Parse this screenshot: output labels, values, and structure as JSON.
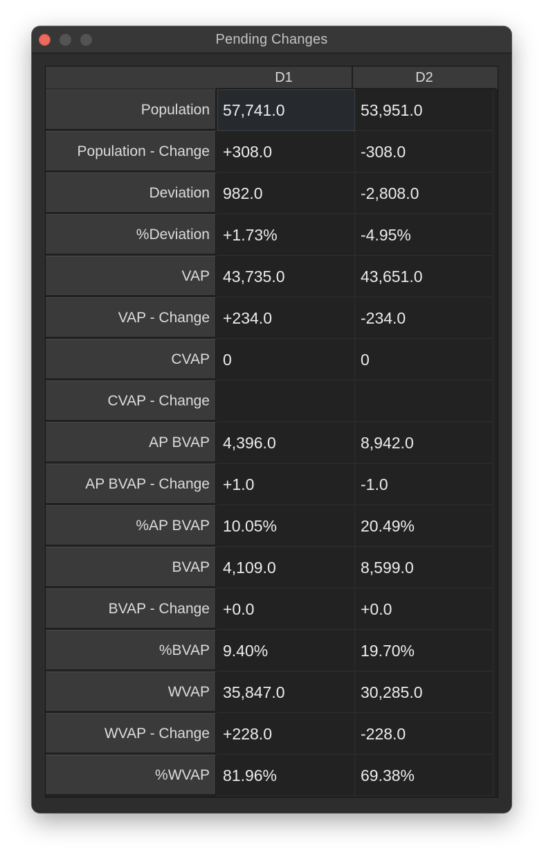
{
  "window": {
    "title": "Pending Changes"
  },
  "table": {
    "columns": [
      "D1",
      "D2"
    ],
    "rows": [
      {
        "label": "Population",
        "d1": "57,741.0",
        "d2": "53,951.0"
      },
      {
        "label": "Population - Change",
        "d1": "+308.0",
        "d2": "-308.0"
      },
      {
        "label": "Deviation",
        "d1": "982.0",
        "d2": "-2,808.0"
      },
      {
        "label": "%Deviation",
        "d1": "+1.73%",
        "d2": "-4.95%"
      },
      {
        "label": "VAP",
        "d1": "43,735.0",
        "d2": "43,651.0"
      },
      {
        "label": "VAP - Change",
        "d1": "+234.0",
        "d2": "-234.0"
      },
      {
        "label": "CVAP",
        "d1": "0",
        "d2": "0"
      },
      {
        "label": "CVAP - Change",
        "d1": "",
        "d2": ""
      },
      {
        "label": "AP BVAP",
        "d1": "4,396.0",
        "d2": "8,942.0"
      },
      {
        "label": "AP BVAP - Change",
        "d1": "+1.0",
        "d2": "-1.0"
      },
      {
        "label": "%AP BVAP",
        "d1": "10.05%",
        "d2": "20.49%"
      },
      {
        "label": "BVAP",
        "d1": "4,109.0",
        "d2": "8,599.0"
      },
      {
        "label": "BVAP - Change",
        "d1": "+0.0",
        "d2": "+0.0"
      },
      {
        "label": "%BVAP",
        "d1": "9.40%",
        "d2": "19.70%"
      },
      {
        "label": "WVAP",
        "d1": "35,847.0",
        "d2": "30,285.0"
      },
      {
        "label": "WVAP - Change",
        "d1": "+228.0",
        "d2": "-228.0"
      },
      {
        "label": "%WVAP",
        "d1": "81.96%",
        "d2": "69.38%"
      }
    ]
  },
  "colors": {
    "close_button": "#ed6a5e",
    "inactive_button": "#535353",
    "window_background": "#2d2d2d",
    "header_background": "#3a3a3a",
    "cell_background": "#222222",
    "selected_cell": "#262a2e"
  }
}
